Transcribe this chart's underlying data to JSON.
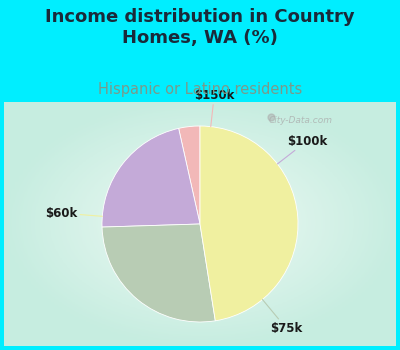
{
  "title": "Income distribution in Country\nHomes, WA (%)",
  "subtitle": "Hispanic or Latino residents",
  "slices": [
    {
      "label": "$150k",
      "value": 3.5,
      "color": "#f2b8b8"
    },
    {
      "label": "$100k",
      "value": 22.0,
      "color": "#c4aad8"
    },
    {
      "label": "$75k",
      "value": 27.0,
      "color": "#b8ccb4"
    },
    {
      "label": "$60k",
      "value": 47.5,
      "color": "#f0f0a0"
    }
  ],
  "bg_cyan": "#00eeff",
  "bg_chart_outer": "#c8eee0",
  "bg_chart_inner": "#f0faf8",
  "title_color": "#1a2a3a",
  "subtitle_color": "#7a9a8a",
  "watermark": "City-Data.com",
  "startangle": 90,
  "label_color": "#1a1a1a",
  "label_fontsize": 8.5,
  "title_fontsize": 13,
  "subtitle_fontsize": 10.5
}
